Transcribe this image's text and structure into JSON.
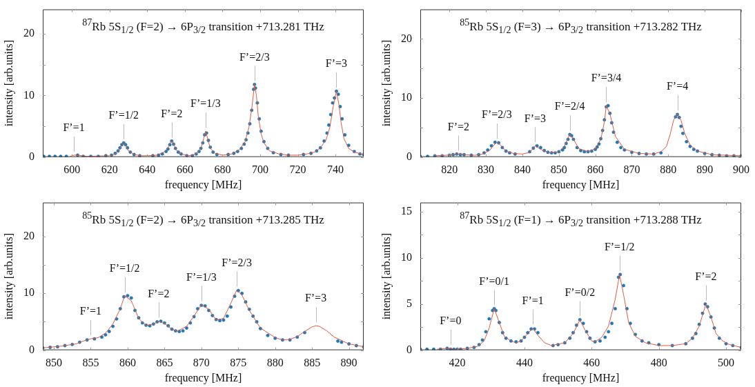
{
  "chart_data": [
    {
      "type": "scatter",
      "title": "$^{87}$Rb 5S$_{1/2}$ (F=2) → 6P$_{3/2}$ transition +713.281 THz",
      "xlabel": "frequency [MHz]",
      "ylabel": "intensity [arb.units]",
      "xlim": [
        584.5,
        755
      ],
      "xticks": [
        600,
        620,
        640,
        660,
        680,
        700,
        720,
        740
      ],
      "ylim": [
        0,
        24
      ],
      "yticks": [
        0,
        {
          "value": 5,
          "label": null
        },
        10,
        {
          "value": 15,
          "label": null
        },
        20
      ],
      "legend": false,
      "annotations": [
        {
          "text": "F’=1",
          "x": 601,
          "y": 0.3
        },
        {
          "text": "F’=1/2",
          "x": 627.5,
          "y": 2.3
        },
        {
          "text": "F’=2",
          "x": 653,
          "y": 2.6
        },
        {
          "text": "F’=1/3",
          "x": 671,
          "y": 4.2
        },
        {
          "text": "F’=2/3",
          "x": 697,
          "y": 11.8
        },
        {
          "text": "F’=3",
          "x": 740.5,
          "y": 10.7
        }
      ],
      "series": [
        {
          "type": "scatter",
          "marker": "circle",
          "color": "#1f77b4",
          "x": [
            585,
            588,
            591,
            594,
            597,
            603,
            606,
            610,
            614,
            618,
            621,
            623,
            624.5,
            625.5,
            626.5,
            627.5,
            628.5,
            629.5,
            631,
            633,
            636,
            643,
            646,
            648,
            650,
            651,
            652,
            653,
            654,
            655,
            656.5,
            658,
            661,
            664,
            666,
            667.5,
            668.5,
            669.5,
            670.5,
            671.5,
            672.5,
            673.5,
            675,
            677,
            683,
            686,
            688,
            690,
            691.5,
            692.5,
            693.5,
            694.5,
            695.5,
            696.5,
            697,
            697.5,
            698.5,
            699.5,
            700.5,
            702,
            704,
            707,
            711,
            715,
            723,
            727,
            730,
            732,
            734,
            735.5,
            736.5,
            737.5,
            738.5,
            739.5,
            740.5,
            741.5,
            742.5,
            743.5,
            745,
            747,
            750,
            753,
            755
          ],
          "values": [
            0.1,
            0.1,
            0.1,
            0.1,
            0.1,
            0.3,
            0.1,
            0.1,
            0.1,
            0.2,
            0.3,
            0.6,
            1.0,
            1.5,
            2.0,
            2.3,
            2.0,
            1.5,
            0.8,
            0.4,
            0.2,
            0.2,
            0.3,
            0.5,
            0.9,
            1.3,
            2.0,
            2.6,
            2.1,
            1.4,
            0.8,
            0.5,
            0.2,
            0.2,
            0.5,
            0.9,
            1.4,
            2.3,
            3.6,
            3.9,
            2.7,
            1.6,
            0.8,
            0.4,
            0.4,
            0.6,
            0.9,
            1.4,
            2.1,
            2.8,
            3.9,
            5.4,
            7.6,
            11.0,
            11.8,
            11.2,
            8.8,
            6.2,
            4.2,
            2.5,
            1.4,
            0.7,
            0.4,
            0.3,
            0.4,
            0.6,
            1.0,
            1.5,
            2.6,
            3.9,
            5.2,
            6.9,
            8.8,
            9.6,
            10.7,
            10.2,
            8.2,
            6.2,
            3.6,
            1.9,
            0.9,
            0.5,
            0.4
          ]
        },
        {
          "type": "line",
          "line_style": "solid",
          "color": "#e5583f",
          "x": [
            599,
            601,
            603,
            608,
            620,
            623,
            625,
            626.5,
            627.5,
            628.5,
            630,
            633,
            637,
            640,
            645,
            649,
            651,
            652.2,
            653,
            654,
            655.5,
            658,
            662,
            666,
            668.5,
            670,
            671,
            672,
            673.5,
            676,
            680,
            685,
            689,
            692,
            694,
            695.5,
            697,
            698,
            699,
            700.5,
            702,
            705,
            710,
            715,
            720,
            725,
            729,
            732,
            735,
            737,
            738.8,
            740.5,
            741.8,
            743,
            744.5,
            747,
            750,
            755
          ],
          "values": [
            0.1,
            0.3,
            0.3,
            0.1,
            0.2,
            0.5,
            1.1,
            1.9,
            2.3,
            1.9,
            1.0,
            0.4,
            0.2,
            0.2,
            0.3,
            0.8,
            1.5,
            2.3,
            2.6,
            2.1,
            1.1,
            0.5,
            0.2,
            0.5,
            1.3,
            3.0,
            4.2,
            3.1,
            1.4,
            0.6,
            0.3,
            0.5,
            1.2,
            2.5,
            4.8,
            7.8,
            11.8,
            10.0,
            6.6,
            3.8,
            2.3,
            1.0,
            0.5,
            0.3,
            0.3,
            0.5,
            0.8,
            1.5,
            2.8,
            4.8,
            8.2,
            10.7,
            8.6,
            5.6,
            3.0,
            1.4,
            0.8,
            0.4
          ]
        }
      ]
    },
    {
      "type": "scatter",
      "title": "$^{85}$Rb 5S$_{1/2}$ (F=3) → 6P$_{3/2}$ transition +713.282 THz",
      "xlabel": "frequency [MHz]",
      "ylabel": "intensity [arb.units]",
      "xlim": [
        812,
        900
      ],
      "xticks": [
        820,
        830,
        840,
        850,
        860,
        870,
        880,
        890,
        900
      ],
      "ylim": [
        0,
        25
      ],
      "yticks": [
        0,
        {
          "value": 5,
          "label": null
        },
        10,
        {
          "value": 15,
          "label": null
        },
        20
      ],
      "legend": false,
      "annotations": [
        {
          "text": "F’=2",
          "x": 822.5,
          "y": 0.5
        },
        {
          "text": "F’=2/3",
          "x": 833,
          "y": 2.5
        },
        {
          "text": "F’=3",
          "x": 843.5,
          "y": 1.9
        },
        {
          "text": "F’=2/4",
          "x": 853,
          "y": 3.9
        },
        {
          "text": "F’=3/4",
          "x": 863,
          "y": 8.7
        },
        {
          "text": "F’=4",
          "x": 882.5,
          "y": 7.3
        }
      ],
      "series": [
        {
          "type": "scatter",
          "marker": "circle",
          "color": "#1f77b4",
          "x": [
            812,
            814,
            816,
            818,
            820,
            821,
            822,
            823,
            824,
            826,
            828,
            829.5,
            830.5,
            831.5,
            832.5,
            833.5,
            834.5,
            835.5,
            836.5,
            838,
            842,
            843,
            844,
            845,
            846,
            847,
            848,
            849,
            850,
            851,
            851.5,
            852,
            852.5,
            853,
            853.5,
            854,
            855,
            856,
            857,
            858,
            859,
            860,
            860.5,
            861,
            861.5,
            862,
            862.5,
            863,
            863.5,
            864,
            864.5,
            865,
            866,
            867,
            868,
            870,
            872,
            874,
            876,
            878,
            882,
            882.5,
            883,
            883.5,
            884,
            885,
            886,
            887,
            888,
            890,
            892,
            894,
            896,
            898,
            900
          ],
          "values": [
            0.1,
            0.1,
            0.2,
            0.2,
            0.3,
            0.4,
            0.5,
            0.4,
            0.4,
            0.3,
            0.4,
            0.7,
            1.2,
            1.9,
            2.5,
            2.4,
            1.6,
            1.0,
            0.7,
            0.5,
            0.9,
            1.5,
            1.9,
            1.6,
            1.1,
            0.8,
            0.7,
            0.7,
            0.9,
            1.2,
            1.6,
            2.3,
            3.0,
            3.8,
            3.6,
            3.0,
            1.6,
            1.1,
            0.9,
            0.9,
            1.0,
            1.3,
            1.7,
            2.2,
            3.1,
            4.5,
            6.3,
            8.5,
            8.7,
            7.4,
            5.8,
            4.2,
            2.5,
            1.6,
            1.2,
            0.8,
            0.6,
            0.5,
            0.5,
            0.7,
            6.8,
            7.2,
            6.7,
            5.2,
            4.0,
            2.6,
            1.8,
            1.3,
            1.0,
            0.6,
            0.4,
            0.3,
            0.2,
            0.2,
            0.2
          ]
        },
        {
          "type": "line",
          "line_style": "solid",
          "color": "#e5583f",
          "x": [
            816,
            819,
            821,
            822.5,
            824,
            827,
            829,
            831,
            832,
            833,
            834,
            835.5,
            837.5,
            840,
            842,
            843.5,
            845,
            847.5,
            850,
            851.5,
            852.5,
            853,
            854,
            855.5,
            858,
            860,
            861.5,
            862.5,
            863,
            864,
            865.5,
            868,
            872,
            876,
            878,
            879.5,
            880.5,
            881.5,
            882.5,
            883.5,
            884.5,
            886,
            888,
            892,
            900
          ],
          "values": [
            0.2,
            0.3,
            0.4,
            0.5,
            0.4,
            0.3,
            0.5,
            1.1,
            1.9,
            2.5,
            2.0,
            1.0,
            0.6,
            0.5,
            0.8,
            1.9,
            1.3,
            0.7,
            0.9,
            1.8,
            3.2,
            3.9,
            3.0,
            1.4,
            0.9,
            1.4,
            3.0,
            6.0,
            8.7,
            7.3,
            3.5,
            1.3,
            0.6,
            0.5,
            0.9,
            1.8,
            3.8,
            6.3,
            7.3,
            6.2,
            4.0,
            2.0,
            1.0,
            0.4,
            0.2
          ]
        }
      ]
    },
    {
      "type": "scatter",
      "title": "$^{85}$Rb 5S$_{1/2}$ (F=2) → 6P$_{3/2}$ transition +713.285 THz",
      "xlabel": "frequency [MHz]",
      "ylabel": "intensity [arb.units]",
      "xlim": [
        848.5,
        892
      ],
      "xticks": [
        850,
        855,
        860,
        865,
        870,
        875,
        880,
        885,
        890
      ],
      "ylim": [
        0,
        26
      ],
      "yticks": [
        0,
        {
          "value": 5,
          "label": null
        },
        10,
        {
          "value": 15,
          "label": null
        },
        20
      ],
      "legend": false,
      "annotations": [
        {
          "text": "F’=1",
          "x": 855,
          "y": 2.0
        },
        {
          "text": "F’=1/2",
          "x": 859.6,
          "y": 9.6
        },
        {
          "text": "F’=2",
          "x": 864.2,
          "y": 5.1
        },
        {
          "text": "F’=1/3",
          "x": 870,
          "y": 8.0
        },
        {
          "text": "F’=2/3",
          "x": 874.8,
          "y": 10.6
        },
        {
          "text": "F’=3",
          "x": 885.5,
          "y": 4.3
        }
      ],
      "series": [
        {
          "type": "scatter",
          "marker": "circle",
          "color": "#1f77b4",
          "x": [
            848.5,
            849.5,
            850.5,
            851.5,
            852.5,
            853.5,
            854.5,
            855.5,
            856.5,
            857,
            857.5,
            858,
            858.5,
            859,
            859.5,
            860,
            860.5,
            861,
            861.5,
            862,
            862.5,
            863,
            863.5,
            864,
            864.5,
            865,
            865.5,
            866,
            866.5,
            867,
            867.5,
            868,
            868.5,
            869,
            869.5,
            870,
            870.5,
            871,
            871.5,
            872,
            872.5,
            873,
            873.5,
            874,
            874.5,
            875,
            875.5,
            876,
            876.5,
            877,
            877.5,
            878,
            879,
            880,
            881,
            882,
            883,
            884,
            888.5,
            889,
            890,
            891,
            892
          ],
          "values": [
            0.4,
            0.5,
            0.6,
            0.8,
            1.0,
            1.4,
            1.8,
            2.0,
            2.3,
            2.7,
            3.3,
            4.2,
            5.5,
            7.3,
            9.4,
            9.6,
            9.2,
            7.0,
            5.7,
            4.8,
            4.4,
            4.3,
            4.6,
            5.0,
            5.1,
            4.8,
            4.3,
            3.7,
            3.4,
            3.3,
            3.4,
            3.9,
            4.8,
            5.9,
            7.3,
            7.9,
            7.8,
            7.0,
            6.1,
            5.4,
            5.2,
            5.3,
            6.0,
            7.6,
            9.5,
            10.5,
            10.0,
            8.5,
            7.2,
            6.0,
            5.0,
            3.8,
            2.6,
            2.1,
            1.8,
            1.8,
            2.3,
            3.1,
            1.6,
            1.4,
            1.1,
            0.8,
            0.6
          ]
        },
        {
          "type": "line",
          "line_style": "solid",
          "color": "#e5583f",
          "x": [
            848.5,
            851,
            853,
            854,
            855,
            856,
            857,
            858,
            859,
            859.6,
            860.5,
            861.5,
            862.5,
            863.5,
            864.2,
            865,
            866,
            866.7,
            868,
            869,
            870,
            871,
            872,
            873,
            874,
            874.8,
            875.5,
            876.5,
            878,
            880,
            881,
            882,
            883,
            884,
            885,
            885.5,
            886,
            887,
            888,
            890,
            892
          ],
          "values": [
            0.4,
            0.7,
            1.1,
            1.6,
            2.0,
            2.2,
            3.0,
            4.6,
            7.3,
            9.6,
            8.7,
            5.6,
            4.3,
            4.6,
            5.1,
            4.7,
            3.7,
            3.3,
            4.2,
            6.0,
            8.0,
            7.2,
            5.3,
            5.6,
            8.3,
            10.6,
            9.7,
            7.0,
            3.9,
            2.2,
            1.8,
            1.9,
            2.4,
            3.3,
            4.1,
            4.3,
            4.2,
            3.4,
            2.3,
            1.1,
            0.6
          ]
        }
      ]
    },
    {
      "type": "scatter",
      "title": "$^{87}$Rb 5S$_{1/2}$ (F=1) → 6P$_{3/2}$ transition +713.288 THz",
      "xlabel": "frequency [MHz]",
      "ylabel": "intensity [arb.units]",
      "xlim": [
        409,
        504.5
      ],
      "xticks": [
        420,
        440,
        460,
        480,
        500
      ],
      "ylim": [
        0,
        16
      ],
      "yticks": [
        0,
        {
          "value": 2.5,
          "label": null
        },
        5,
        {
          "value": 7.5,
          "label": null
        },
        10,
        {
          "value": 12.5,
          "label": null
        },
        15
      ],
      "legend": false,
      "annotations": [
        {
          "text": "F’=0",
          "x": 418,
          "y": 0.2
        },
        {
          "text": "F’=0/1",
          "x": 431,
          "y": 4.5
        },
        {
          "text": "F’=1",
          "x": 442.5,
          "y": 2.4
        },
        {
          "text": "F’=0/2",
          "x": 456.5,
          "y": 3.3
        },
        {
          "text": "F’=1/2",
          "x": 468.3,
          "y": 8.2
        },
        {
          "text": "F’=2",
          "x": 494,
          "y": 5.0
        }
      ],
      "series": [
        {
          "type": "scatter",
          "marker": "circle",
          "color": "#1f77b4",
          "x": [
            409,
            411,
            413,
            415,
            417,
            418,
            419,
            420,
            421,
            423,
            425,
            426.5,
            427.5,
            428.5,
            429.5,
            430.5,
            431,
            431.5,
            432.5,
            433.5,
            434.5,
            436,
            437.5,
            439,
            440,
            441,
            442,
            443,
            444,
            448.5,
            450,
            452,
            453.5,
            454.5,
            455.5,
            456.5,
            457.5,
            458.5,
            459.5,
            461,
            462.5,
            464,
            465,
            466,
            467,
            468,
            468.5,
            469.5,
            470.5,
            471.5,
            473,
            475,
            477,
            480,
            484,
            488,
            490,
            491,
            492,
            493,
            493.8,
            494.5,
            495.5,
            496.5,
            498,
            500,
            502,
            504.5
          ],
          "values": [
            0.1,
            0.1,
            0.1,
            0.1,
            0.2,
            0.1,
            0.1,
            0.1,
            0.1,
            0.2,
            0.3,
            0.6,
            1.1,
            2.0,
            3.4,
            4.3,
            4.5,
            4.3,
            3.0,
            1.9,
            1.3,
            1.0,
            0.9,
            1.0,
            1.4,
            1.9,
            2.3,
            2.3,
            1.9,
            0.5,
            0.6,
            0.8,
            1.3,
            1.9,
            2.7,
            3.3,
            2.9,
            2.0,
            1.3,
            0.9,
            1.0,
            1.4,
            2.0,
            2.9,
            4.5,
            7.9,
            8.2,
            7.0,
            4.5,
            2.9,
            1.7,
            1.0,
            0.8,
            0.6,
            0.5,
            0.7,
            1.3,
            1.8,
            2.8,
            4.0,
            5.0,
            4.7,
            3.6,
            2.4,
            1.3,
            0.7,
            0.5,
            0.3
          ]
        },
        {
          "type": "line",
          "line_style": "solid",
          "color": "#e5583f",
          "x": [
            414,
            417,
            418,
            419,
            420,
            423,
            426,
            428,
            429.5,
            431,
            432.5,
            434,
            436,
            437.5,
            439,
            440.5,
            442.5,
            444,
            446,
            448,
            452,
            454.5,
            456.5,
            458,
            460,
            461,
            463,
            465,
            467,
            468.3,
            469.5,
            471,
            473,
            476,
            480,
            484,
            488,
            490,
            492,
            494,
            495.5,
            497,
            499,
            501,
            504.5
          ],
          "values": [
            0.1,
            0.2,
            0.2,
            0.1,
            0.1,
            0.2,
            0.4,
            1.0,
            2.4,
            4.5,
            3.0,
            1.5,
            1.0,
            0.8,
            1.0,
            1.6,
            2.4,
            1.6,
            0.8,
            0.5,
            0.8,
            1.8,
            3.3,
            2.2,
            1.0,
            0.9,
            1.4,
            2.6,
            5.5,
            8.2,
            6.0,
            3.0,
            1.5,
            0.8,
            0.5,
            0.5,
            0.7,
            1.3,
            2.6,
            5.0,
            3.6,
            1.8,
            1.0,
            0.6,
            0.3
          ]
        }
      ]
    }
  ]
}
